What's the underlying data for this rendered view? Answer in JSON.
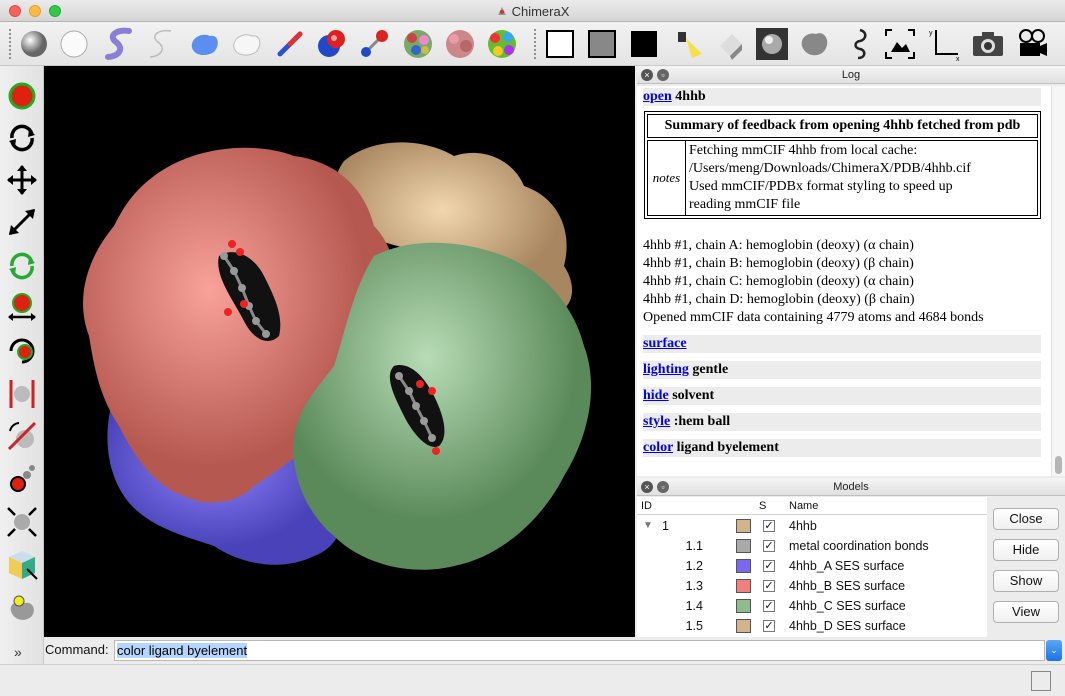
{
  "window": {
    "title": "ChimeraX"
  },
  "toolbar": {
    "buttons": [
      {
        "name": "atoms-sphere-icon"
      },
      {
        "name": "atoms-hide-icon"
      },
      {
        "name": "cartoon-show-icon"
      },
      {
        "name": "cartoon-hide-icon"
      },
      {
        "name": "surface-show-icon"
      },
      {
        "name": "surface-hide-icon"
      },
      {
        "name": "stick-style-icon"
      },
      {
        "name": "sphere-style-icon"
      },
      {
        "name": "ball-stick-style-icon"
      },
      {
        "name": "color-by-chain-icon"
      },
      {
        "name": "color-by-polymer-icon"
      },
      {
        "name": "rainbow-icon"
      },
      {
        "name": "white-background-icon"
      },
      {
        "name": "gray-background-icon"
      },
      {
        "name": "black-background-icon"
      },
      {
        "name": "simple-lighting-icon"
      },
      {
        "name": "soft-lighting-icon"
      },
      {
        "name": "full-lighting-icon"
      },
      {
        "name": "flat-lighting-icon"
      },
      {
        "name": "silhouette-icon"
      },
      {
        "name": "view-all-icon"
      },
      {
        "name": "orient-axes-icon"
      },
      {
        "name": "snapshot-icon"
      },
      {
        "name": "movie-icon"
      }
    ]
  },
  "log": {
    "header": "Log",
    "open_cmd": "open",
    "open_arg": "4hhb",
    "summary_title": "Summary of feedback from opening 4hhb fetched from pdb",
    "notes_label": "notes",
    "notes_lines": [
      "Fetching mmCIF 4hhb from local cache:",
      "/Users/meng/Downloads/ChimeraX/PDB/4hhb.cif",
      "Used mmCIF/PDBx format styling to speed up",
      "reading mmCIF file"
    ],
    "chain_lines": [
      "4hhb #1, chain A: hemoglobin (deoxy) (α chain)",
      "4hhb #1, chain B: hemoglobin (deoxy) (β chain)",
      "4hhb #1, chain C: hemoglobin (deoxy) (α chain)",
      "4hhb #1, chain D: hemoglobin (deoxy) (β chain)",
      "Opened mmCIF data containing 4779 atoms and 4684 bonds"
    ],
    "commands": [
      {
        "cmd": "surface",
        "arg": ""
      },
      {
        "cmd": "lighting",
        "arg": "gentle"
      },
      {
        "cmd": "hide",
        "arg": "solvent"
      },
      {
        "cmd": "style",
        "arg": ":hem ball"
      },
      {
        "cmd": "color",
        "arg": "ligand byelement"
      }
    ]
  },
  "models": {
    "header": "Models",
    "col_id": "ID",
    "col_s": "S",
    "col_name": "Name",
    "rows": [
      {
        "id": "1",
        "color": "#d2b48c",
        "name": "4hhb"
      },
      {
        "id": "1.1",
        "color": "#a9a9a9",
        "name": "metal coordination bonds"
      },
      {
        "id": "1.2",
        "color": "#7b68ee",
        "name": "4hhb_A SES surface"
      },
      {
        "id": "1.3",
        "color": "#f08080",
        "name": "4hhb_B SES surface"
      },
      {
        "id": "1.4",
        "color": "#8fbc8f",
        "name": "4hhb_C SES surface"
      },
      {
        "id": "1.5",
        "color": "#d2b48c",
        "name": "4hhb_D SES surface"
      }
    ],
    "buttons": [
      "Close",
      "Hide",
      "Show",
      "View"
    ]
  },
  "command": {
    "label": "Command:",
    "value": "color ligand byelement"
  }
}
